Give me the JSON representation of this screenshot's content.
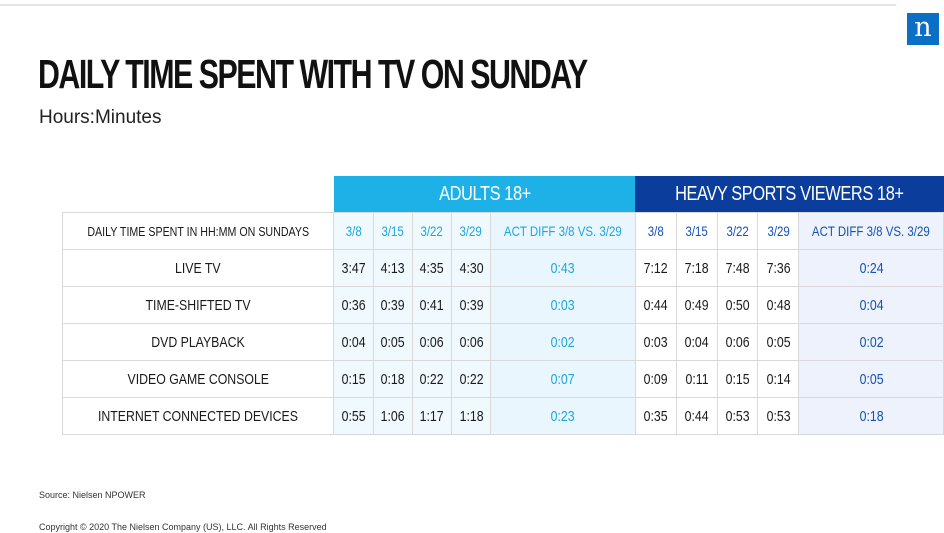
{
  "logo": {
    "letter": "n"
  },
  "title": "DAILY TIME SPENT WITH TV ON SUNDAY",
  "subtitle": "Hours:Minutes",
  "table": {
    "group_headers": [
      "ADULTS 18+",
      "HEAVY SPORTS VIEWERS 18+"
    ],
    "header_label": "DAILY TIME SPENT IN HH:MM ON SUNDAYS",
    "adults_columns": [
      "3/8",
      "3/15",
      "3/22",
      "3/29",
      "ACT DIFF 3/8 VS. 3/29"
    ],
    "sports_columns": [
      "3/8",
      "3/15",
      "3/22",
      "3/29",
      "ACT DIFF 3/8 VS. 3/29"
    ],
    "rows": [
      {
        "label": "LIVE TV",
        "adults": [
          "3:47",
          "4:13",
          "4:35",
          "4:30",
          "0:43"
        ],
        "sports": [
          "7:12",
          "7:18",
          "7:48",
          "7:36",
          "0:24"
        ]
      },
      {
        "label": "TIME-SHIFTED TV",
        "adults": [
          "0:36",
          "0:39",
          "0:41",
          "0:39",
          "0:03"
        ],
        "sports": [
          "0:44",
          "0:49",
          "0:50",
          "0:48",
          "0:04"
        ]
      },
      {
        "label": "DVD PLAYBACK",
        "adults": [
          "0:04",
          "0:05",
          "0:06",
          "0:06",
          "0:02"
        ],
        "sports": [
          "0:03",
          "0:04",
          "0:06",
          "0:05",
          "0:02"
        ]
      },
      {
        "label": "VIDEO GAME CONSOLE",
        "adults": [
          "0:15",
          "0:18",
          "0:22",
          "0:22",
          "0:07"
        ],
        "sports": [
          "0:09",
          "0:11",
          "0:15",
          "0:14",
          "0:05"
        ]
      },
      {
        "label": "INTERNET CONNECTED DEVICES",
        "adults": [
          "0:55",
          "1:06",
          "1:17",
          "1:18",
          "0:23"
        ],
        "sports": [
          "0:35",
          "0:44",
          "0:53",
          "0:53",
          "0:18"
        ]
      }
    ]
  },
  "source": "Source: Nielsen NPOWER",
  "copyright": "Copyright © 2020 The Nielsen Company (US), LLC. All Rights Reserved",
  "colors": {
    "adults_header": "#1eb1e7",
    "sports_header": "#0a3d9c",
    "logo": "#0b6fc6"
  }
}
